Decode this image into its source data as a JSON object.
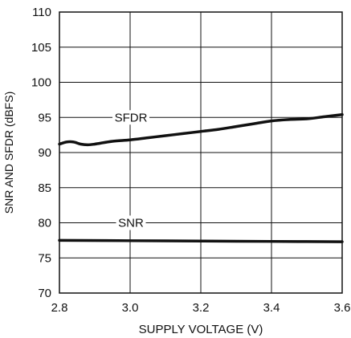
{
  "chart_data": {
    "type": "line",
    "title": "",
    "xlabel": "SUPPLY VOLTAGE (V)",
    "ylabel": "SNR AND SFDR (dBFS)",
    "xlim": [
      2.8,
      3.6
    ],
    "ylim": [
      70,
      110
    ],
    "xticks": [
      "2.8",
      "3.0",
      "3.2",
      "3.4",
      "3.6"
    ],
    "yticks": [
      "70",
      "75",
      "80",
      "85",
      "90",
      "95",
      "100",
      "105",
      "110"
    ],
    "grid": true,
    "legend": "none",
    "series": [
      {
        "name": "SFDR",
        "x": [
          2.8,
          2.82,
          2.84,
          2.86,
          2.88,
          2.9,
          2.95,
          3.0,
          3.05,
          3.1,
          3.15,
          3.2,
          3.25,
          3.3,
          3.35,
          3.4,
          3.45,
          3.5,
          3.55,
          3.6
        ],
        "values": [
          91.2,
          91.5,
          91.5,
          91.2,
          91.1,
          91.2,
          91.6,
          91.8,
          92.1,
          92.4,
          92.7,
          93.0,
          93.3,
          93.7,
          94.1,
          94.5,
          94.7,
          94.8,
          95.1,
          95.4
        ]
      },
      {
        "name": "SNR",
        "x": [
          2.8,
          3.0,
          3.2,
          3.4,
          3.6
        ],
        "values": [
          77.5,
          77.45,
          77.4,
          77.35,
          77.3
        ]
      }
    ],
    "annotations": [
      {
        "text": "SFDR",
        "series": "SFDR",
        "at_x": 3.0
      },
      {
        "text": "SNR",
        "series": "SNR",
        "at_x": 3.0
      }
    ]
  }
}
